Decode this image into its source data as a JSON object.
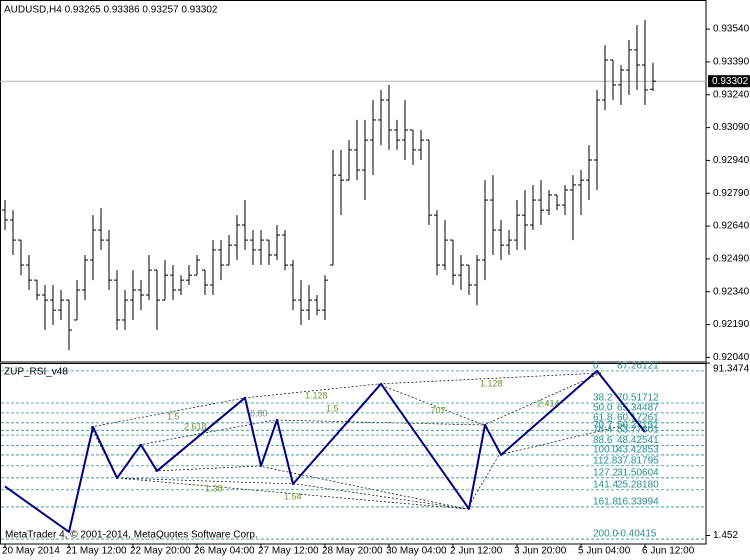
{
  "chart_data": [
    {
      "type": "ohlc",
      "title": "AUDUSD,H4  0.93265 0.93386 0.93257 0.93302",
      "color": "#000000",
      "categories": [
        "20 May 2014",
        null,
        null,
        null,
        null,
        null,
        null,
        null,
        "21 May 12:00",
        null,
        null,
        null,
        null,
        null,
        null,
        null,
        "22 May 20:00",
        null,
        null,
        null,
        null,
        null,
        null,
        null,
        "26 May 04:00",
        null,
        null,
        null,
        null,
        null,
        null,
        null,
        "27 May 12:00",
        null,
        null,
        null,
        null,
        null,
        null,
        null,
        "28 May 20:00",
        null,
        null,
        null,
        null,
        null,
        null,
        null,
        "30 May 04:00",
        null,
        null,
        null,
        null,
        null,
        null,
        null,
        "2 Jun 12:00",
        null,
        null,
        null,
        null,
        null,
        null,
        null,
        "3 Jun 20:00",
        null,
        null,
        null,
        null,
        null,
        null,
        null,
        "5 Jun 04:00",
        null,
        null,
        null,
        null,
        null,
        null,
        null,
        "6 Jun 12:00",
        null
      ],
      "open": [
        0.92713,
        0.92668,
        0.92576,
        0.92462,
        0.92393,
        0.92325,
        0.92302,
        0.92256,
        0.92302,
        0.92211,
        0.92348,
        0.92485,
        0.92622,
        0.92576,
        0.92393,
        0.92211,
        0.92302,
        0.92348,
        0.92325,
        0.92439,
        0.92302,
        0.92416,
        0.92348,
        0.92393,
        0.92416,
        0.92439,
        0.92371,
        0.92531,
        0.92462,
        0.92553,
        0.92645,
        0.92576,
        0.92531,
        0.92576,
        0.92508,
        0.92599,
        0.92462,
        0.92302,
        0.92256,
        0.92302,
        0.92256,
        0.92462,
        0.92873,
        0.9285,
        0.92988,
        0.92896,
        0.93033,
        0.93125,
        0.93216,
        0.93079,
        0.93033,
        0.93079,
        0.92988,
        0.93033,
        0.9269,
        0.92462,
        0.92576,
        0.92416,
        0.92462,
        0.92371,
        0.92485,
        0.92759,
        0.92622,
        0.92553,
        0.92576,
        0.9269,
        0.92645,
        0.92759,
        0.92713,
        0.92782,
        0.92736,
        0.92805,
        0.92828,
        0.9285,
        0.92942,
        0.93216,
        0.93399,
        0.93285,
        0.93353,
        0.93445,
        0.93376,
        0.93265
      ],
      "high": [
        0.92759,
        0.92713,
        0.92576,
        0.92508,
        0.92393,
        0.92371,
        0.92371,
        0.92348,
        0.92302,
        0.92393,
        0.92508,
        0.9269,
        0.92722,
        0.92622,
        0.92439,
        0.92348,
        0.92439,
        0.92393,
        0.92508,
        0.92439,
        0.92485,
        0.92462,
        0.92416,
        0.92462,
        0.92508,
        0.92439,
        0.92576,
        0.92576,
        0.92599,
        0.9269,
        0.92759,
        0.92622,
        0.92622,
        0.92576,
        0.92645,
        0.92622,
        0.92485,
        0.92393,
        0.92371,
        0.92325,
        0.92416,
        0.92988,
        0.92988,
        0.93033,
        0.93125,
        0.93125,
        0.93216,
        0.93262,
        0.93285,
        0.93125,
        0.93216,
        0.93079,
        0.93079,
        0.93033,
        0.92713,
        0.92668,
        0.92576,
        0.92508,
        0.92462,
        0.92508,
        0.9285,
        0.92873,
        0.92668,
        0.92622,
        0.92759,
        0.92805,
        0.92828,
        0.9285,
        0.92805,
        0.92782,
        0.92828,
        0.92873,
        0.92896,
        0.9301,
        0.93262,
        0.93467,
        0.93399,
        0.93376,
        0.9349,
        0.93559,
        0.93582,
        0.93386
      ],
      "low": [
        0.92622,
        0.92508,
        0.92416,
        0.92348,
        0.92302,
        0.92165,
        0.92188,
        0.92211,
        0.92073,
        0.92211,
        0.92302,
        0.92393,
        0.92531,
        0.92348,
        0.92165,
        0.92165,
        0.92211,
        0.92256,
        0.92302,
        0.92165,
        0.92302,
        0.92302,
        0.92325,
        0.92371,
        0.92416,
        0.92325,
        0.92325,
        0.92393,
        0.92462,
        0.92485,
        0.92531,
        0.92462,
        0.92462,
        0.92462,
        0.92485,
        0.92439,
        0.92256,
        0.92188,
        0.92211,
        0.92233,
        0.92211,
        0.92462,
        0.9269,
        0.9285,
        0.9285,
        0.92759,
        0.92873,
        0.9301,
        0.92988,
        0.92988,
        0.92942,
        0.92919,
        0.92942,
        0.92645,
        0.92416,
        0.92439,
        0.92371,
        0.92348,
        0.92325,
        0.92279,
        0.92393,
        0.92508,
        0.92485,
        0.92508,
        0.92531,
        0.92531,
        0.92622,
        0.92645,
        0.9269,
        0.92713,
        0.9269,
        0.92576,
        0.9269,
        0.92759,
        0.92805,
        0.9317,
        0.93216,
        0.93193,
        0.93239,
        0.93262,
        0.93193,
        0.93257
      ],
      "close": [
        0.92668,
        0.92576,
        0.92462,
        0.92393,
        0.92325,
        0.92302,
        0.92256,
        0.92302,
        0.92165,
        0.92348,
        0.92485,
        0.92622,
        0.92576,
        0.92393,
        0.92211,
        0.92302,
        0.92348,
        0.92325,
        0.92439,
        0.92302,
        0.92416,
        0.92348,
        0.92393,
        0.92416,
        0.92485,
        0.92371,
        0.92531,
        0.92462,
        0.92553,
        0.92645,
        0.92576,
        0.92531,
        0.92576,
        0.92508,
        0.92599,
        0.92462,
        0.92302,
        0.92256,
        0.92302,
        0.92256,
        0.92393,
        0.92873,
        0.9285,
        0.92988,
        0.92896,
        0.93033,
        0.93125,
        0.93216,
        0.93079,
        0.93033,
        0.93079,
        0.92988,
        0.93033,
        0.9269,
        0.92462,
        0.92576,
        0.92416,
        0.92462,
        0.92371,
        0.92485,
        0.92759,
        0.92622,
        0.92553,
        0.92576,
        0.9269,
        0.92645,
        0.92759,
        0.92713,
        0.92782,
        0.92736,
        0.92805,
        0.92828,
        0.9285,
        0.92942,
        0.93216,
        0.93399,
        0.93285,
        0.93353,
        0.93445,
        0.93376,
        0.93262,
        0.93302
      ],
      "current_price": 0.93302,
      "ylim": [
        0.92019,
        0.93673
      ],
      "yticks": [
        {
          "value": 0.9354,
          "label": "0.93540"
        },
        {
          "value": 0.9339,
          "label": "0.93390"
        },
        {
          "value": 0.9324,
          "label": "0.93240"
        },
        {
          "value": 0.9309,
          "label": "0.93090"
        },
        {
          "value": 0.9294,
          "label": "0.92940"
        },
        {
          "value": 0.9279,
          "label": "0.92790"
        },
        {
          "value": 0.9264,
          "label": "0.92640"
        },
        {
          "value": 0.9249,
          "label": "0.92490"
        },
        {
          "value": 0.9234,
          "label": "0.92340"
        },
        {
          "value": 0.9219,
          "label": "0.92190"
        },
        {
          "value": 0.9204,
          "label": "0.92040"
        }
      ]
    },
    {
      "type": "line",
      "title": "ZUP_RSI_v48",
      "color": "#000080",
      "level_color": "#2a9090",
      "x": [
        0,
        8,
        11,
        14,
        17,
        19,
        30,
        32,
        34,
        36,
        47,
        58,
        60,
        62,
        74,
        80
      ],
      "values": [
        27,
        3.3,
        58,
        31.4,
        48.7,
        35.1,
        73.2,
        37.7,
        61.7,
        28.3,
        80.5,
        15.3,
        59.1,
        43.43,
        87.26,
        55.4
      ],
      "levels": [
        {
          "level": "0",
          "value": 87.26121
        },
        {
          "level": "38.2",
          "value": 70.51712
        },
        {
          "level": "50.0",
          "value": 65.34487
        },
        {
          "level": "61.8",
          "value": 60.17261
        },
        {
          "level": "70.7",
          "value": 56.27151
        },
        {
          "level": "76.4",
          "value": 53.77301
        },
        {
          "level": "88.6",
          "value": 48.42541
        },
        {
          "level": "100.0",
          "value": 43.42853
        },
        {
          "level": "112.8",
          "value": 37.81795
        },
        {
          "level": "127.2",
          "value": 31.50604
        },
        {
          "level": "141.4",
          "value": 25.2818,
          "label": "25.28180"
        },
        {
          "level": "161.8",
          "value": 16.33994
        },
        {
          "level": "200.0",
          "value": -0.40415
        }
      ],
      "annotations": [
        "1.128",
        "1.5",
        "1.128",
        ".707",
        "2.414",
        "2.618",
        "1.5",
        "0.80",
        "1.38",
        "1.54"
      ],
      "ylim": [
        1.452,
        91.3474
      ],
      "yticks": [
        1.452,
        91.3474
      ]
    }
  ],
  "footer": "MetaTrader 4, © 2001-2014, MetaQuotes Software Corp."
}
